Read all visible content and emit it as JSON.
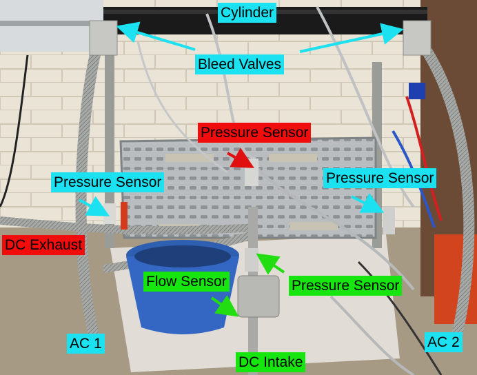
{
  "labels": {
    "cylinder": "Cylinder",
    "bleed_valves": "Bleed Valves",
    "pressure_sensor_top": "Pressure Sensor",
    "pressure_sensor_left": "Pressure Sensor",
    "pressure_sensor_right": "Pressure Sensor",
    "pressure_sensor_bottom": "Pressure Sensor",
    "dc_exhaust": "DC Exhaust",
    "flow_sensor": "Flow Sensor",
    "ac1": "AC 1",
    "ac2": "AC 2",
    "dc_intake": "DC Intake"
  },
  "colors": {
    "cyan_label": "#1be1f0",
    "red_label": "#f20d0d",
    "green_label": "#16e50f",
    "cyan_arrow": "#1be1f0",
    "red_arrow": "#e01010",
    "green_arrow": "#22dd11"
  }
}
